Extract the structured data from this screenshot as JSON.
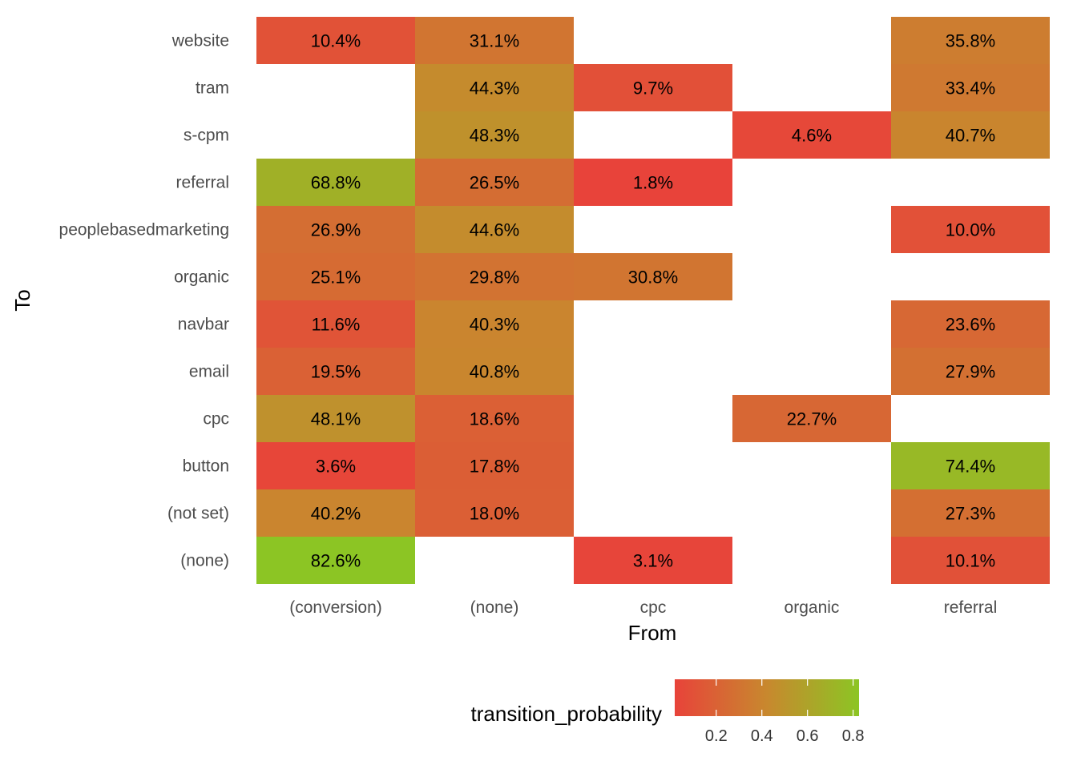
{
  "chart_data": {
    "type": "heatmap",
    "xlabel": "From",
    "ylabel": "To",
    "x_categories": [
      "(conversion)",
      "(none)",
      "cpc",
      "organic",
      "referral"
    ],
    "y_categories": [
      "website",
      "tram",
      "s-cpm",
      "referral",
      "peoplebasedmarketing",
      "organic",
      "navbar",
      "email",
      "cpc",
      "button",
      "(not set)",
      "(none)"
    ],
    "cells": [
      {
        "from": "(conversion)",
        "to": "website",
        "value": 0.104,
        "label": "10.4%"
      },
      {
        "from": "(none)",
        "to": "website",
        "value": 0.311,
        "label": "31.1%"
      },
      {
        "from": "referral",
        "to": "website",
        "value": 0.358,
        "label": "35.8%"
      },
      {
        "from": "(none)",
        "to": "tram",
        "value": 0.443,
        "label": "44.3%"
      },
      {
        "from": "cpc",
        "to": "tram",
        "value": 0.097,
        "label": "9.7%"
      },
      {
        "from": "referral",
        "to": "tram",
        "value": 0.334,
        "label": "33.4%"
      },
      {
        "from": "(none)",
        "to": "s-cpm",
        "value": 0.483,
        "label": "48.3%"
      },
      {
        "from": "organic",
        "to": "s-cpm",
        "value": 0.046,
        "label": "4.6%"
      },
      {
        "from": "referral",
        "to": "s-cpm",
        "value": 0.407,
        "label": "40.7%"
      },
      {
        "from": "(conversion)",
        "to": "referral",
        "value": 0.688,
        "label": "68.8%"
      },
      {
        "from": "(none)",
        "to": "referral",
        "value": 0.265,
        "label": "26.5%"
      },
      {
        "from": "cpc",
        "to": "referral",
        "value": 0.018,
        "label": "1.8%"
      },
      {
        "from": "(conversion)",
        "to": "peoplebasedmarketing",
        "value": 0.269,
        "label": "26.9%"
      },
      {
        "from": "(none)",
        "to": "peoplebasedmarketing",
        "value": 0.446,
        "label": "44.6%"
      },
      {
        "from": "referral",
        "to": "peoplebasedmarketing",
        "value": 0.1,
        "label": "10.0%"
      },
      {
        "from": "(conversion)",
        "to": "organic",
        "value": 0.251,
        "label": "25.1%"
      },
      {
        "from": "(none)",
        "to": "organic",
        "value": 0.298,
        "label": "29.8%"
      },
      {
        "from": "cpc",
        "to": "organic",
        "value": 0.308,
        "label": "30.8%"
      },
      {
        "from": "(conversion)",
        "to": "navbar",
        "value": 0.116,
        "label": "11.6%"
      },
      {
        "from": "(none)",
        "to": "navbar",
        "value": 0.403,
        "label": "40.3%"
      },
      {
        "from": "referral",
        "to": "navbar",
        "value": 0.236,
        "label": "23.6%"
      },
      {
        "from": "(conversion)",
        "to": "email",
        "value": 0.195,
        "label": "19.5%"
      },
      {
        "from": "(none)",
        "to": "email",
        "value": 0.408,
        "label": "40.8%"
      },
      {
        "from": "referral",
        "to": "email",
        "value": 0.279,
        "label": "27.9%"
      },
      {
        "from": "(conversion)",
        "to": "cpc",
        "value": 0.481,
        "label": "48.1%"
      },
      {
        "from": "(none)",
        "to": "cpc",
        "value": 0.186,
        "label": "18.6%"
      },
      {
        "from": "organic",
        "to": "cpc",
        "value": 0.227,
        "label": "22.7%"
      },
      {
        "from": "(conversion)",
        "to": "button",
        "value": 0.036,
        "label": "3.6%"
      },
      {
        "from": "(none)",
        "to": "button",
        "value": 0.178,
        "label": "17.8%"
      },
      {
        "from": "referral",
        "to": "button",
        "value": 0.744,
        "label": "74.4%"
      },
      {
        "from": "(conversion)",
        "to": "(not set)",
        "value": 0.402,
        "label": "40.2%"
      },
      {
        "from": "(none)",
        "to": "(not set)",
        "value": 0.18,
        "label": "18.0%"
      },
      {
        "from": "referral",
        "to": "(not set)",
        "value": 0.273,
        "label": "27.3%"
      },
      {
        "from": "(conversion)",
        "to": "(none)",
        "value": 0.826,
        "label": "82.6%"
      },
      {
        "from": "cpc",
        "to": "(none)",
        "value": 0.031,
        "label": "3.1%"
      },
      {
        "from": "referral",
        "to": "(none)",
        "value": 0.101,
        "label": "10.1%"
      }
    ],
    "color_scale": {
      "low": "#e8433a",
      "mid": "#c8882e",
      "high": "#8cc524",
      "domain": [
        0.018,
        0.826
      ]
    },
    "legend": {
      "title": "transition_probability",
      "position": "bottom",
      "ticks": [
        0.2,
        0.4,
        0.6,
        0.8
      ],
      "tick_labels": [
        "0.2",
        "0.4",
        "0.6",
        "0.8"
      ]
    },
    "grid": false
  }
}
